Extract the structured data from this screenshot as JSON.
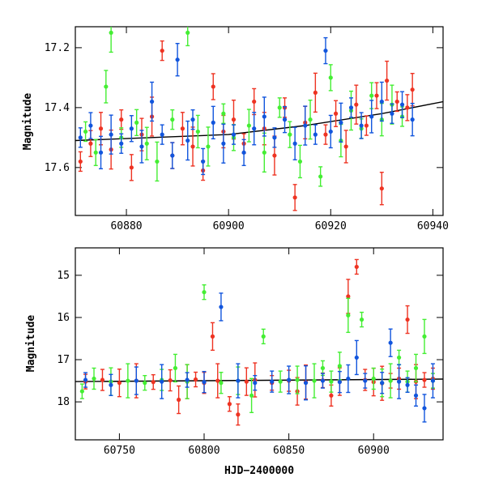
{
  "colors": {
    "red": "#ee3322",
    "green": "#44ee33",
    "blue": "#1155dd",
    "fit": "#000000"
  },
  "chart_data": [
    {
      "type": "scatter",
      "title": "",
      "xlabel": "",
      "ylabel": "Magnitude",
      "xlim": [
        60870,
        60942
      ],
      "ylim": [
        17.76,
        17.13
      ],
      "y_inverted": true,
      "xticks": [
        "60880",
        "60900",
        "60920",
        "60940"
      ],
      "yticks": [
        "17.2",
        "17.4",
        "17.6"
      ],
      "error_bars": true,
      "trend_line": {
        "x": [
          60870,
          60885,
          60900,
          60915,
          60930,
          60942
        ],
        "y": [
          17.51,
          17.5,
          17.49,
          17.46,
          17.42,
          17.38
        ]
      },
      "series": [
        {
          "color": "red",
          "points": [
            [
              60871,
              17.58
            ],
            [
              60873,
              17.52
            ],
            [
              60875,
              17.47
            ],
            [
              60877,
              17.54
            ],
            [
              60879,
              17.44
            ],
            [
              60881,
              17.6
            ],
            [
              60883,
              17.49
            ],
            [
              60885,
              17.43
            ],
            [
              60887,
              17.21
            ],
            [
              60889,
              17.56
            ],
            [
              60891,
              17.47
            ],
            [
              60893,
              17.53
            ],
            [
              60895,
              17.61
            ],
            [
              60897,
              17.33
            ],
            [
              60899,
              17.48
            ],
            [
              60901,
              17.44
            ],
            [
              60903,
              17.52
            ],
            [
              60905,
              17.38
            ],
            [
              60907,
              17.47
            ],
            [
              60909,
              17.56
            ],
            [
              60911,
              17.4
            ],
            [
              60913,
              17.7
            ],
            [
              60915,
              17.45
            ],
            [
              60917,
              17.35
            ],
            [
              60919,
              17.49
            ],
            [
              60921,
              17.42
            ],
            [
              60923,
              17.53
            ],
            [
              60925,
              17.39
            ],
            [
              60927,
              17.46
            ],
            [
              60929,
              17.36
            ],
            [
              60930,
              17.67
            ],
            [
              60931,
              17.31
            ],
            [
              60933,
              17.38
            ],
            [
              60935,
              17.4
            ],
            [
              60936,
              17.34
            ]
          ]
        },
        {
          "color": "green",
          "points": [
            [
              60872,
              17.48
            ],
            [
              60874,
              17.55
            ],
            [
              60876,
              17.33
            ],
            [
              60877,
              17.15
            ],
            [
              60879,
              17.5
            ],
            [
              60882,
              17.45
            ],
            [
              60884,
              17.52
            ],
            [
              60886,
              17.58
            ],
            [
              60889,
              17.44
            ],
            [
              60892,
              17.15
            ],
            [
              60894,
              17.48
            ],
            [
              60896,
              17.53
            ],
            [
              60899,
              17.42
            ],
            [
              60901,
              17.5
            ],
            [
              60904,
              17.46
            ],
            [
              60907,
              17.55
            ],
            [
              60910,
              17.4
            ],
            [
              60912,
              17.49
            ],
            [
              60914,
              17.58
            ],
            [
              60916,
              17.44
            ],
            [
              60918,
              17.63
            ],
            [
              60920,
              17.3
            ],
            [
              60922,
              17.51
            ],
            [
              60924,
              17.41
            ],
            [
              60926,
              17.47
            ],
            [
              60928,
              17.36
            ],
            [
              60930,
              17.44
            ],
            [
              60932,
              17.39
            ],
            [
              60934,
              17.43
            ]
          ]
        },
        {
          "color": "blue",
          "points": [
            [
              60871,
              17.5
            ],
            [
              60873,
              17.46
            ],
            [
              60875,
              17.55
            ],
            [
              60877,
              17.49
            ],
            [
              60879,
              17.52
            ],
            [
              60881,
              17.47
            ],
            [
              60883,
              17.53
            ],
            [
              60885,
              17.38
            ],
            [
              60887,
              17.49
            ],
            [
              60889,
              17.56
            ],
            [
              60890,
              17.24
            ],
            [
              60892,
              17.51
            ],
            [
              60893,
              17.44
            ],
            [
              60895,
              17.58
            ],
            [
              60897,
              17.45
            ],
            [
              60899,
              17.52
            ],
            [
              60901,
              17.49
            ],
            [
              60903,
              17.55
            ],
            [
              60905,
              17.47
            ],
            [
              60907,
              17.43
            ],
            [
              60909,
              17.5
            ],
            [
              60911,
              17.44
            ],
            [
              60913,
              17.52
            ],
            [
              60915,
              17.46
            ],
            [
              60917,
              17.49
            ],
            [
              60919,
              17.21
            ],
            [
              60920,
              17.48
            ],
            [
              60922,
              17.45
            ],
            [
              60924,
              17.4
            ],
            [
              60926,
              17.46
            ],
            [
              60928,
              17.43
            ],
            [
              60930,
              17.38
            ],
            [
              60932,
              17.42
            ],
            [
              60934,
              17.39
            ],
            [
              60936,
              17.44
            ]
          ]
        }
      ]
    },
    {
      "type": "scatter",
      "title": "",
      "xlabel": "HJD−2400000",
      "ylabel": "Magnitude",
      "xlim": [
        60724,
        60941
      ],
      "ylim": [
        18.9,
        14.35
      ],
      "y_inverted": true,
      "xticks": [
        "60750",
        "60800",
        "60850",
        "60900"
      ],
      "yticks": [
        "15",
        "16",
        "17",
        "18"
      ],
      "error_bars": true,
      "trend_line": {
        "x": [
          60724,
          60941
        ],
        "y": [
          17.52,
          17.46
        ]
      },
      "series": [
        {
          "color": "red",
          "points": [
            [
              60730,
              17.52
            ],
            [
              60740,
              17.48
            ],
            [
              60750,
              17.55
            ],
            [
              60760,
              17.5
            ],
            [
              60770,
              17.53
            ],
            [
              60780,
              17.49
            ],
            [
              60785,
              17.95
            ],
            [
              60790,
              17.52
            ],
            [
              60795,
              17.47
            ],
            [
              60800,
              17.55
            ],
            [
              60805,
              16.45
            ],
            [
              60808,
              17.5
            ],
            [
              60815,
              18.05
            ],
            [
              60820,
              18.3
            ],
            [
              60825,
              17.52
            ],
            [
              60830,
              17.48
            ],
            [
              60840,
              17.55
            ],
            [
              60850,
              17.5
            ],
            [
              60855,
              17.75
            ],
            [
              60860,
              17.53
            ],
            [
              60870,
              17.49
            ],
            [
              60875,
              17.85
            ],
            [
              60880,
              17.52
            ],
            [
              60885,
              15.5
            ],
            [
              60890,
              14.8
            ],
            [
              60895,
              17.48
            ],
            [
              60900,
              17.53
            ],
            [
              60905,
              17.56
            ],
            [
              60910,
              17.5
            ],
            [
              60915,
              17.45
            ],
            [
              60920,
              16.05
            ],
            [
              60925,
              17.52
            ],
            [
              60930,
              17.48
            ],
            [
              60935,
              17.45
            ]
          ]
        },
        {
          "color": "green",
          "points": [
            [
              60728,
              17.75
            ],
            [
              60735,
              17.45
            ],
            [
              60745,
              17.52
            ],
            [
              60755,
              17.5
            ],
            [
              60765,
              17.55
            ],
            [
              60775,
              17.48
            ],
            [
              60783,
              17.2
            ],
            [
              60790,
              17.52
            ],
            [
              60800,
              15.4
            ],
            [
              60810,
              17.55
            ],
            [
              60820,
              17.5
            ],
            [
              60828,
              17.85
            ],
            [
              60835,
              16.45
            ],
            [
              60845,
              17.52
            ],
            [
              60855,
              17.48
            ],
            [
              60865,
              17.5
            ],
            [
              60870,
              17.2
            ],
            [
              60875,
              17.52
            ],
            [
              60880,
              17.15
            ],
            [
              60885,
              15.95
            ],
            [
              60893,
              16.05
            ],
            [
              60900,
              17.45
            ],
            [
              60905,
              17.55
            ],
            [
              60910,
              17.5
            ],
            [
              60915,
              16.95
            ],
            [
              60920,
              17.52
            ],
            [
              60925,
              17.2
            ],
            [
              60930,
              16.45
            ],
            [
              60935,
              17.5
            ]
          ]
        },
        {
          "color": "blue",
          "points": [
            [
              60730,
              17.48
            ],
            [
              60745,
              17.6
            ],
            [
              60760,
              17.5
            ],
            [
              60775,
              17.52
            ],
            [
              60790,
              17.48
            ],
            [
              60800,
              17.53
            ],
            [
              60810,
              15.75
            ],
            [
              60820,
              17.5
            ],
            [
              60830,
              17.55
            ],
            [
              60840,
              17.52
            ],
            [
              60850,
              17.48
            ],
            [
              60860,
              17.55
            ],
            [
              60870,
              17.5
            ],
            [
              60880,
              17.53
            ],
            [
              60885,
              17.45
            ],
            [
              60890,
              16.95
            ],
            [
              60895,
              17.5
            ],
            [
              60905,
              17.55
            ],
            [
              60910,
              16.6
            ],
            [
              60915,
              17.52
            ],
            [
              60920,
              17.6
            ],
            [
              60925,
              17.85
            ],
            [
              60930,
              18.15
            ],
            [
              60935,
              17.5
            ]
          ]
        }
      ]
    }
  ]
}
